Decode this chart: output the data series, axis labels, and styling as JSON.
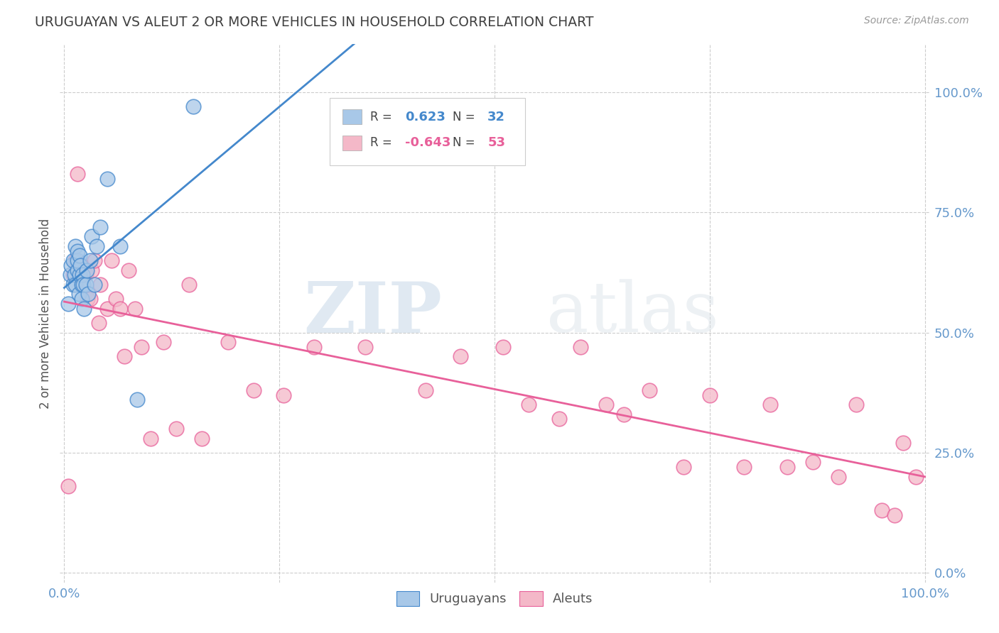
{
  "title": "URUGUAYAN VS ALEUT 2 OR MORE VEHICLES IN HOUSEHOLD CORRELATION CHART",
  "source": "Source: ZipAtlas.com",
  "ylabel": "2 or more Vehicles in Household",
  "watermark_zip": "ZIP",
  "watermark_atlas": "atlas",
  "blue_color": "#a8c8e8",
  "pink_color": "#f4b8c8",
  "blue_line_color": "#4488cc",
  "pink_line_color": "#e8609a",
  "blue_r_val": "0.623",
  "blue_n_val": "32",
  "pink_r_val": "-0.643",
  "pink_n_val": "53",
  "ytick_values": [
    0.0,
    0.25,
    0.5,
    0.75,
    1.0
  ],
  "ytick_labels": [
    "0.0%",
    "25.0%",
    "50.0%",
    "75.0%",
    "100.0%"
  ],
  "background_color": "#ffffff",
  "grid_color": "#cccccc",
  "title_color": "#404040",
  "axis_label_color": "#6699cc",
  "legend_label_blue": "Uruguayans",
  "legend_label_pink": "Aleuts",
  "uruguayans_x": [
    0.005,
    0.007,
    0.008,
    0.01,
    0.01,
    0.012,
    0.013,
    0.013,
    0.015,
    0.015,
    0.015,
    0.017,
    0.018,
    0.018,
    0.019,
    0.02,
    0.02,
    0.021,
    0.022,
    0.023,
    0.025,
    0.026,
    0.028,
    0.03,
    0.032,
    0.035,
    0.038,
    0.042,
    0.05,
    0.065,
    0.085,
    0.15
  ],
  "uruguayans_y": [
    0.56,
    0.62,
    0.64,
    0.6,
    0.65,
    0.62,
    0.6,
    0.68,
    0.63,
    0.65,
    0.67,
    0.58,
    0.62,
    0.66,
    0.64,
    0.57,
    0.6,
    0.62,
    0.6,
    0.55,
    0.6,
    0.63,
    0.58,
    0.65,
    0.7,
    0.6,
    0.68,
    0.72,
    0.82,
    0.68,
    0.36,
    0.97
  ],
  "aleuts_x": [
    0.005,
    0.01,
    0.013,
    0.015,
    0.018,
    0.02,
    0.022,
    0.025,
    0.027,
    0.03,
    0.032,
    0.035,
    0.04,
    0.042,
    0.05,
    0.055,
    0.06,
    0.065,
    0.07,
    0.075,
    0.082,
    0.09,
    0.1,
    0.115,
    0.13,
    0.145,
    0.16,
    0.19,
    0.22,
    0.255,
    0.29,
    0.35,
    0.42,
    0.46,
    0.51,
    0.54,
    0.575,
    0.6,
    0.63,
    0.65,
    0.68,
    0.72,
    0.75,
    0.79,
    0.82,
    0.84,
    0.87,
    0.9,
    0.92,
    0.95,
    0.965,
    0.975,
    0.99
  ],
  "aleuts_y": [
    0.18,
    0.62,
    0.65,
    0.83,
    0.62,
    0.64,
    0.6,
    0.62,
    0.57,
    0.57,
    0.63,
    0.65,
    0.52,
    0.6,
    0.55,
    0.65,
    0.57,
    0.55,
    0.45,
    0.63,
    0.55,
    0.47,
    0.28,
    0.48,
    0.3,
    0.6,
    0.28,
    0.48,
    0.38,
    0.37,
    0.47,
    0.47,
    0.38,
    0.45,
    0.47,
    0.35,
    0.32,
    0.47,
    0.35,
    0.33,
    0.38,
    0.22,
    0.37,
    0.22,
    0.35,
    0.22,
    0.23,
    0.2,
    0.35,
    0.13,
    0.12,
    0.27,
    0.2
  ]
}
